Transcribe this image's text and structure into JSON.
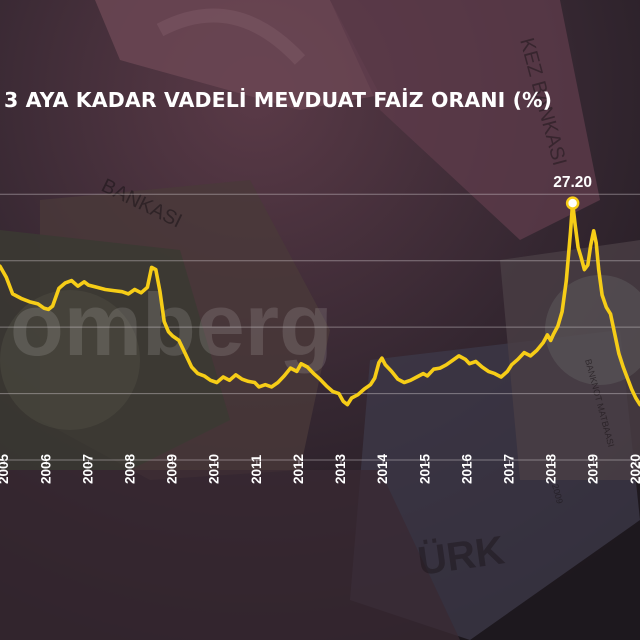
{
  "title": "3 AYA KADAR VADELİ MEVDUAT FAİZ ORANI (%)",
  "background_text": {
    "watermark": "omberg",
    "note_1": "BANKASI",
    "note_2": "KEZ BANKASI",
    "note_3": "BANKNOT MATBAASI",
    "note_4": "ÜRK",
    "note_5": "2009"
  },
  "colors": {
    "line": "#f6cd17",
    "text": "#ffffff",
    "grid": "#d9d2d8",
    "background": "#2a2027"
  },
  "chart_data": {
    "type": "line",
    "title": "3 AYA KADAR VADELİ MEVDUAT FAİZ ORANI (%)",
    "xlabel": "",
    "ylabel": "",
    "x_ticks": [
      "2005",
      "2006",
      "2007",
      "2008",
      "2009",
      "2010",
      "2011",
      "2012",
      "2013",
      "2014",
      "2015",
      "2016",
      "2017",
      "2018",
      "2019",
      "2020"
    ],
    "xlim": [
      2004.9,
      2020.1
    ],
    "ylim": [
      4,
      32
    ],
    "grid": true,
    "legend": "none",
    "annotations": [
      {
        "x": 2018.5,
        "y": 27.2,
        "label": "27.20"
      }
    ],
    "series": [
      {
        "points": [
          [
            2004.9,
            21.5
          ],
          [
            2005.05,
            20.5
          ],
          [
            2005.2,
            19.0
          ],
          [
            2005.4,
            18.6
          ],
          [
            2005.6,
            18.3
          ],
          [
            2005.8,
            18.1
          ],
          [
            2005.95,
            17.7
          ],
          [
            2006.05,
            17.6
          ],
          [
            2006.15,
            17.9
          ],
          [
            2006.3,
            19.5
          ],
          [
            2006.45,
            20.0
          ],
          [
            2006.6,
            20.2
          ],
          [
            2006.75,
            19.7
          ],
          [
            2006.9,
            20.1
          ],
          [
            2007.0,
            19.8
          ],
          [
            2007.2,
            19.6
          ],
          [
            2007.4,
            19.4
          ],
          [
            2007.6,
            19.3
          ],
          [
            2007.8,
            19.2
          ],
          [
            2007.95,
            19.0
          ],
          [
            2008.1,
            19.4
          ],
          [
            2008.25,
            19.1
          ],
          [
            2008.4,
            19.6
          ],
          [
            2008.5,
            21.4
          ],
          [
            2008.6,
            21.2
          ],
          [
            2008.7,
            19.2
          ],
          [
            2008.8,
            16.5
          ],
          [
            2008.9,
            15.6
          ],
          [
            2009.0,
            15.2
          ],
          [
            2009.15,
            14.8
          ],
          [
            2009.3,
            13.6
          ],
          [
            2009.45,
            12.4
          ],
          [
            2009.6,
            11.8
          ],
          [
            2009.75,
            11.6
          ],
          [
            2009.9,
            11.2
          ],
          [
            2010.05,
            11.0
          ],
          [
            2010.2,
            11.5
          ],
          [
            2010.35,
            11.2
          ],
          [
            2010.5,
            11.7
          ],
          [
            2010.65,
            11.3
          ],
          [
            2010.8,
            11.1
          ],
          [
            2010.95,
            11.0
          ],
          [
            2011.05,
            10.6
          ],
          [
            2011.2,
            10.8
          ],
          [
            2011.35,
            10.6
          ],
          [
            2011.5,
            11.0
          ],
          [
            2011.65,
            11.6
          ],
          [
            2011.8,
            12.3
          ],
          [
            2011.95,
            12.0
          ],
          [
            2012.05,
            12.7
          ],
          [
            2012.2,
            12.4
          ],
          [
            2012.35,
            11.8
          ],
          [
            2012.5,
            11.3
          ],
          [
            2012.65,
            10.7
          ],
          [
            2012.8,
            10.2
          ],
          [
            2012.95,
            10.0
          ],
          [
            2013.05,
            9.3
          ],
          [
            2013.15,
            9.0
          ],
          [
            2013.25,
            9.6
          ],
          [
            2013.4,
            9.9
          ],
          [
            2013.55,
            10.4
          ],
          [
            2013.7,
            10.8
          ],
          [
            2013.8,
            11.4
          ],
          [
            2013.9,
            12.8
          ],
          [
            2013.97,
            13.2
          ],
          [
            2014.05,
            12.6
          ],
          [
            2014.2,
            12.0
          ],
          [
            2014.35,
            11.3
          ],
          [
            2014.5,
            11.0
          ],
          [
            2014.65,
            11.2
          ],
          [
            2014.8,
            11.5
          ],
          [
            2014.95,
            11.8
          ],
          [
            2015.05,
            11.6
          ],
          [
            2015.2,
            12.2
          ],
          [
            2015.35,
            12.3
          ],
          [
            2015.5,
            12.6
          ],
          [
            2015.65,
            13.0
          ],
          [
            2015.8,
            13.4
          ],
          [
            2015.95,
            13.1
          ],
          [
            2016.05,
            12.7
          ],
          [
            2016.2,
            12.9
          ],
          [
            2016.35,
            12.4
          ],
          [
            2016.5,
            12.0
          ],
          [
            2016.65,
            11.8
          ],
          [
            2016.8,
            11.5
          ],
          [
            2016.95,
            12.0
          ],
          [
            2017.05,
            12.6
          ],
          [
            2017.2,
            13.1
          ],
          [
            2017.35,
            13.7
          ],
          [
            2017.5,
            13.4
          ],
          [
            2017.65,
            13.9
          ],
          [
            2017.8,
            14.6
          ],
          [
            2017.9,
            15.3
          ],
          [
            2017.98,
            14.8
          ],
          [
            2018.05,
            15.4
          ],
          [
            2018.15,
            16.1
          ],
          [
            2018.25,
            17.4
          ],
          [
            2018.35,
            20.2
          ],
          [
            2018.45,
            24.6
          ],
          [
            2018.5,
            27.2
          ],
          [
            2018.56,
            25.2
          ],
          [
            2018.63,
            23.2
          ],
          [
            2018.7,
            22.3
          ],
          [
            2018.78,
            21.2
          ],
          [
            2018.86,
            21.6
          ],
          [
            2018.93,
            23.4
          ],
          [
            2019.0,
            24.7
          ],
          [
            2019.06,
            23.6
          ],
          [
            2019.12,
            21.2
          ],
          [
            2019.2,
            18.9
          ],
          [
            2019.3,
            17.8
          ],
          [
            2019.4,
            17.2
          ],
          [
            2019.5,
            15.4
          ],
          [
            2019.6,
            13.6
          ],
          [
            2019.7,
            12.4
          ],
          [
            2019.8,
            11.4
          ],
          [
            2019.9,
            10.4
          ],
          [
            2020.0,
            9.6
          ],
          [
            2020.1,
            9.0
          ]
        ]
      }
    ]
  }
}
